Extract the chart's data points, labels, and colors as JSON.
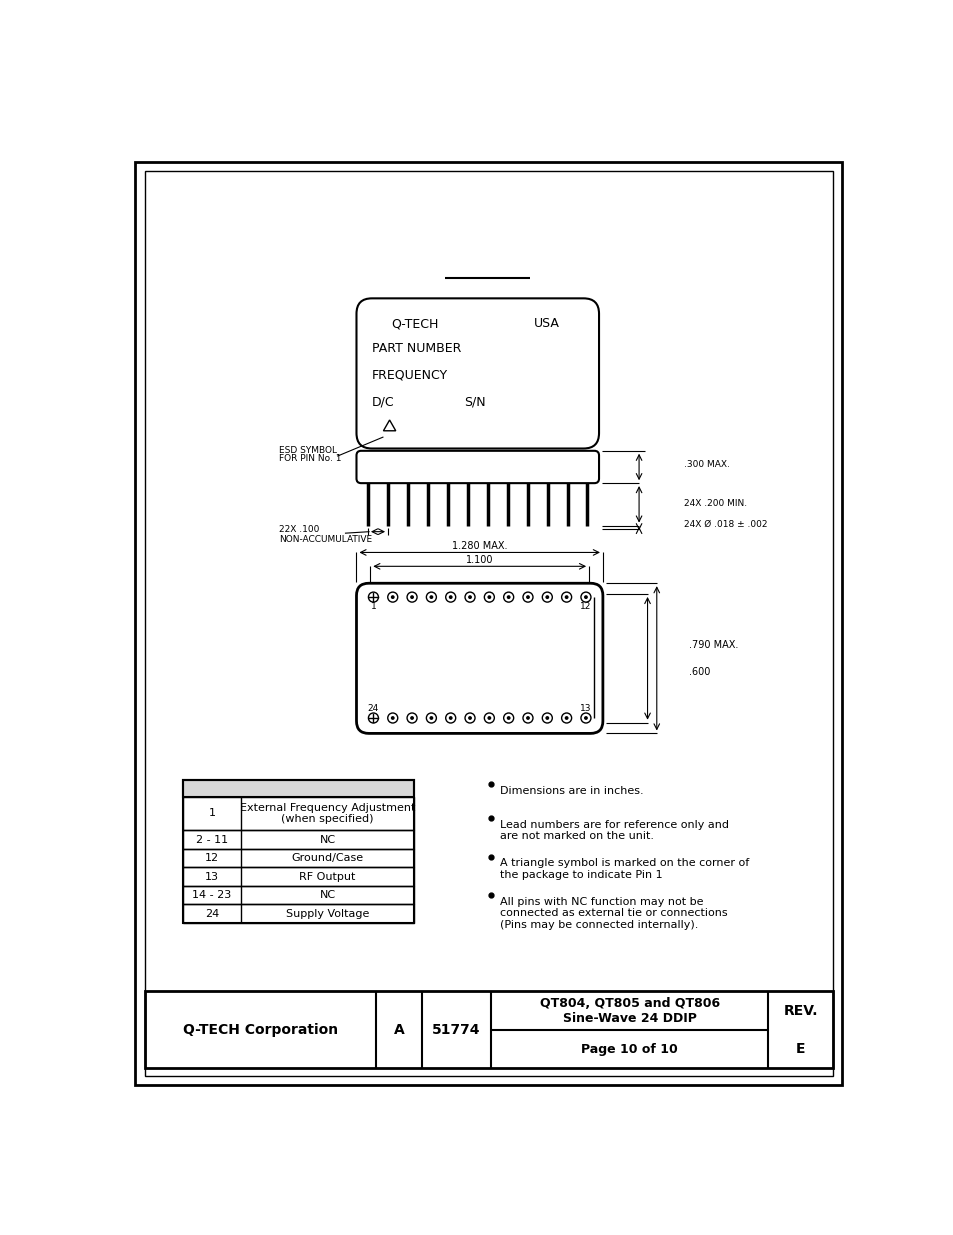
{
  "page_bg": "#ffffff",
  "footer": {
    "company": "Q-TECH Corporation",
    "doc_letter": "A",
    "doc_number": "51774",
    "title_line1": "QT804, QT805 and QT806",
    "title_line2": "Sine-Wave 24 DDIP",
    "page_info": "Page 10 of 10",
    "rev_label": "REV.",
    "rev_value": "E"
  },
  "pin_table": {
    "rows": [
      [
        "1",
        "External Frequency Adjustment\n(when specified)"
      ],
      [
        "2 - 11",
        "NC"
      ],
      [
        "12",
        "Ground/Case"
      ],
      [
        "13",
        "RF Output"
      ],
      [
        "14 - 23",
        "NC"
      ],
      [
        "24",
        "Supply Voltage"
      ]
    ]
  },
  "bullet_notes": [
    "Dimensions are in inches.",
    "Lead numbers are for reference only and\nare not marked on the unit.",
    "A triangle symbol is marked on the corner of\nthe package to indicate Pin 1",
    "All pins with NC function may not be\nconnected as external tie or connections\n(Pins may be connected internally)."
  ],
  "dimensions": {
    "300_max": ".300 MAX.",
    "200_min": "24X .200 MIN.",
    "pin_dia": "24X Ø .018 ± .002",
    "pitch": "22X .100\nNON-ACCUMULATIVE",
    "width_max": "1.280 MAX.",
    "width_inner": "1.100",
    "height_max": ".790 MAX.",
    "height_inner": ".600"
  }
}
